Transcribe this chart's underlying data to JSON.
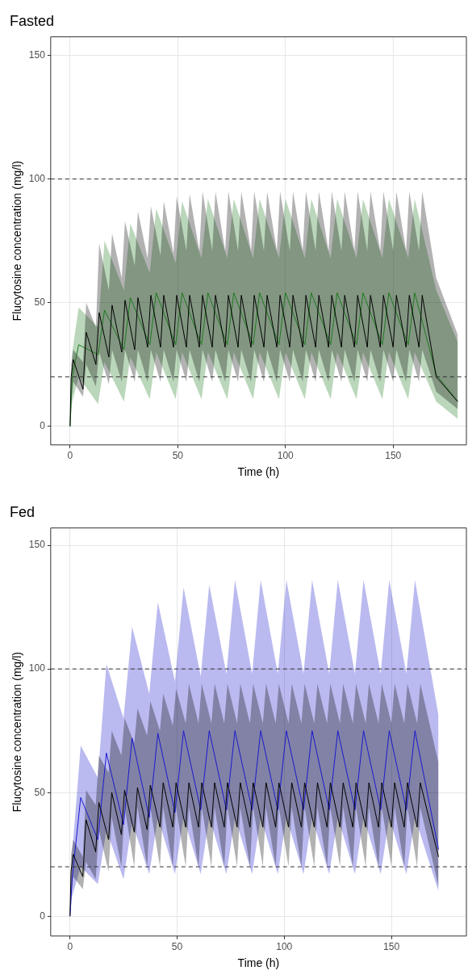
{
  "chart_data": [
    {
      "type": "line",
      "title": "Fasted",
      "xlabel": "Time (h)",
      "ylabel": "Flucytosine concentration (mg/l)",
      "xlim": [
        -9,
        184
      ],
      "ylim": [
        -7.5,
        157.5
      ],
      "xticks": [
        0,
        50,
        100,
        150
      ],
      "yticks": [
        0,
        50,
        100,
        150
      ],
      "grid": true,
      "legend": false,
      "ref_lines": [
        {
          "axis": "y",
          "value": 100,
          "line_style": "dashed",
          "color": "#333333"
        },
        {
          "axis": "y",
          "value": 20,
          "line_style": "dashed",
          "color": "#333333"
        }
      ],
      "series": [
        {
          "color": "#000000",
          "x": [
            0,
            0.5,
            1.5,
            6,
            7.5,
            12,
            13.5,
            18,
            19.5,
            24,
            25.5,
            30,
            31.5,
            36,
            37.5,
            42,
            43.5,
            48,
            49.5,
            54,
            55.5,
            60,
            61.5,
            66,
            67.5,
            72,
            73.5,
            78,
            79.5,
            84,
            85.5,
            90,
            91.5,
            96,
            97.5,
            102,
            103.5,
            108,
            109.5,
            114,
            115.5,
            120,
            121.5,
            126,
            127.5,
            132,
            133.5,
            138,
            139.5,
            144,
            145.5,
            150,
            151.5,
            156,
            157.5,
            162,
            163.5,
            170,
            180
          ],
          "values": [
            0,
            20,
            27,
            15,
            38,
            25,
            46,
            28,
            49,
            30,
            51,
            31,
            52,
            32,
            53,
            32,
            53,
            32,
            53,
            32,
            53,
            32,
            53,
            32,
            53,
            32,
            53,
            32,
            53,
            32,
            53,
            32,
            53,
            32,
            53,
            32,
            53,
            32,
            53,
            32,
            53,
            32,
            53,
            32,
            53,
            32,
            53,
            32,
            53,
            32,
            53,
            32,
            53,
            32,
            53,
            32,
            53,
            20,
            10
          ],
          "upper": [
            0,
            25,
            31,
            26,
            50,
            40,
            74,
            55,
            78,
            60,
            83,
            65,
            87,
            68,
            89,
            69,
            91,
            70,
            93,
            71,
            94,
            71,
            95,
            71,
            95,
            71,
            95,
            71,
            95,
            71,
            95,
            71,
            95,
            71,
            95,
            71,
            95,
            71,
            95,
            71,
            95,
            71,
            95,
            71,
            95,
            71,
            95,
            71,
            95,
            71,
            95,
            71,
            95,
            71,
            95,
            71,
            95,
            60,
            37
          ],
          "lower": [
            0,
            10,
            18,
            12,
            25,
            16,
            30,
            17,
            31,
            18,
            31,
            18,
            31,
            18,
            31,
            18,
            31,
            18,
            31,
            18,
            31,
            18,
            31,
            18,
            31,
            18,
            31,
            18,
            31,
            18,
            31,
            18,
            31,
            18,
            31,
            18,
            31,
            18,
            31,
            18,
            31,
            18,
            31,
            18,
            31,
            18,
            31,
            18,
            31,
            18,
            31,
            18,
            31,
            18,
            31,
            18,
            31,
            14,
            7
          ]
        },
        {
          "color": "#1f7a1f",
          "x": [
            0,
            1,
            4,
            13,
            16,
            25,
            28,
            37,
            40,
            49,
            52,
            61,
            64,
            73,
            76,
            85,
            88,
            97,
            100,
            109,
            112,
            121,
            124,
            133,
            136,
            145,
            148,
            157,
            160,
            170,
            180
          ],
          "values": [
            0,
            20,
            33,
            29,
            47,
            31,
            52,
            33,
            54,
            33,
            54,
            33,
            54,
            33,
            54,
            33,
            54,
            33,
            54,
            33,
            54,
            33,
            54,
            33,
            54,
            33,
            54,
            33,
            54,
            21,
            10
          ],
          "upper": [
            0,
            30,
            48,
            40,
            75,
            55,
            82,
            62,
            88,
            66,
            91,
            68,
            92,
            68,
            92,
            68,
            92,
            68,
            92,
            68,
            92,
            68,
            92,
            68,
            92,
            68,
            92,
            68,
            92,
            55,
            34
          ],
          "lower": [
            0,
            10,
            20,
            9,
            26,
            10,
            28,
            11,
            30,
            11,
            30,
            11,
            30,
            11,
            30,
            11,
            30,
            11,
            30,
            11,
            30,
            11,
            30,
            11,
            30,
            11,
            30,
            11,
            30,
            10,
            3
          ]
        }
      ]
    },
    {
      "type": "line",
      "title": "Fed",
      "xlabel": "Time (h)",
      "ylabel": "Flucytosine concentration (mg/l)",
      "xlim": [
        -9,
        185
      ],
      "ylim": [
        -8,
        157
      ],
      "xticks": [
        0,
        50,
        100,
        150
      ],
      "yticks": [
        0,
        50,
        100,
        150
      ],
      "grid": true,
      "legend": false,
      "ref_lines": [
        {
          "axis": "y",
          "value": 100,
          "line_style": "dashed",
          "color": "#333333"
        },
        {
          "axis": "y",
          "value": 20,
          "line_style": "dashed",
          "color": "#333333"
        }
      ],
      "series": [
        {
          "color": "#000000",
          "x": [
            0,
            0.5,
            1.5,
            6,
            7.5,
            12,
            13.5,
            18,
            19.5,
            24,
            25.5,
            30,
            31.5,
            36,
            37.5,
            42,
            43.5,
            48,
            49.5,
            54,
            55.5,
            60,
            61.5,
            66,
            67.5,
            72,
            73.5,
            78,
            79.5,
            84,
            85.5,
            90,
            91.5,
            96,
            97.5,
            102,
            103.5,
            108,
            109.5,
            114,
            115.5,
            120,
            121.5,
            126,
            127.5,
            132,
            133.5,
            138,
            139.5,
            144,
            145.5,
            150,
            151.5,
            156,
            157.5,
            162,
            163.5,
            172
          ],
          "values": [
            0,
            18,
            25,
            16,
            39,
            26,
            46,
            31,
            50,
            33,
            51,
            34,
            52,
            35,
            53,
            36,
            54,
            36,
            54,
            36,
            54,
            36,
            54,
            36,
            54,
            36,
            54,
            36,
            54,
            36,
            54,
            36,
            54,
            36,
            54,
            36,
            54,
            36,
            54,
            36,
            54,
            36,
            54,
            36,
            54,
            36,
            54,
            36,
            54,
            36,
            54,
            36,
            54,
            36,
            54,
            36,
            54,
            24
          ],
          "upper": [
            0,
            25,
            31,
            24,
            51,
            45,
            65,
            58,
            75,
            65,
            80,
            70,
            84,
            73,
            87,
            75,
            90,
            77,
            92,
            78,
            94,
            78,
            94,
            78,
            94,
            78,
            94,
            78,
            94,
            78,
            94,
            78,
            94,
            78,
            94,
            78,
            94,
            78,
            94,
            78,
            94,
            78,
            94,
            78,
            94,
            78,
            94,
            78,
            94,
            78,
            94,
            78,
            94,
            78,
            94,
            78,
            94,
            62
          ],
          "lower": [
            0,
            8,
            16,
            11,
            22,
            15,
            35,
            18,
            40,
            20,
            44,
            20,
            44,
            20,
            44,
            20,
            44,
            20,
            44,
            20,
            44,
            20,
            44,
            20,
            44,
            20,
            44,
            20,
            44,
            20,
            44,
            20,
            44,
            20,
            44,
            20,
            44,
            20,
            44,
            20,
            44,
            20,
            44,
            20,
            44,
            20,
            44,
            20,
            44,
            20,
            44,
            20,
            44,
            20,
            44,
            20,
            44,
            12
          ]
        },
        {
          "color": "#1a1acc",
          "x": [
            0,
            1,
            5,
            13,
            17,
            25,
            29,
            37,
            41,
            49,
            53,
            61,
            65,
            73,
            77,
            85,
            89,
            97,
            101,
            109,
            113,
            121,
            125,
            133,
            137,
            145,
            149,
            157,
            161,
            172
          ],
          "values": [
            0,
            15,
            48,
            31,
            66,
            37,
            72,
            40,
            74,
            42,
            75,
            43,
            75,
            43,
            75,
            43,
            75,
            43,
            75,
            43,
            75,
            43,
            75,
            43,
            75,
            43,
            75,
            43,
            75,
            27
          ],
          "upper": [
            0,
            25,
            69,
            56,
            102,
            80,
            117,
            90,
            127,
            95,
            133,
            97,
            134,
            98,
            136,
            98,
            136,
            98,
            136,
            98,
            136,
            98,
            136,
            98,
            136,
            98,
            136,
            98,
            136,
            81
          ],
          "lower": [
            0,
            8,
            20,
            13,
            35,
            15,
            38,
            17,
            40,
            17,
            40,
            17,
            40,
            17,
            40,
            17,
            40,
            17,
            40,
            17,
            40,
            17,
            40,
            17,
            40,
            17,
            40,
            17,
            40,
            10
          ]
        }
      ]
    }
  ]
}
